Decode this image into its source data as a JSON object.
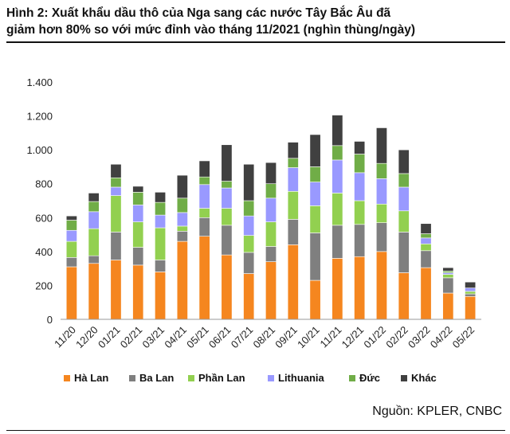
{
  "title": {
    "line1": "Hình 2: Xuất khẩu dầu thô của Nga sang các nước Tây Bắc Âu đã",
    "line2": "giảm hơn 80% so với mức đỉnh vào tháng 11/2021 (nghìn thùng/ngày)"
  },
  "source": "Nguồn: KPLER, CNBC",
  "chart_data": {
    "type": "bar",
    "stacked": true,
    "categories": [
      "11/20",
      "12/20",
      "01/21",
      "02/21",
      "03/21",
      "04/21",
      "05/21",
      "06/21",
      "07/21",
      "08/21",
      "09/21",
      "10/21",
      "11/21",
      "12/21",
      "01/22",
      "02/22",
      "03/22",
      "04/22",
      "05/22"
    ],
    "ylim": [
      0,
      1400
    ],
    "yticks": [
      0,
      200,
      400,
      600,
      800,
      1000,
      1200,
      1400
    ],
    "ytick_labels": [
      "0",
      "200",
      "400",
      "600",
      "800",
      "1.000",
      "1.200",
      "1.400"
    ],
    "grid": false,
    "legend_position": "bottom",
    "series": [
      {
        "name": "Hà Lan",
        "color": "#F5861F",
        "values": [
          310,
          330,
          350,
          320,
          280,
          460,
          490,
          380,
          270,
          340,
          440,
          230,
          360,
          370,
          400,
          275,
          305,
          155,
          135
        ]
      },
      {
        "name": "Ba Lan",
        "color": "#7F7F7F",
        "values": [
          55,
          45,
          165,
          105,
          70,
          60,
          110,
          175,
          125,
          90,
          150,
          280,
          195,
          190,
          170,
          240,
          100,
          90,
          15
        ]
      },
      {
        "name": "Phần Lan",
        "color": "#92D050",
        "values": [
          95,
          160,
          215,
          150,
          190,
          30,
          55,
          100,
          100,
          145,
          165,
          160,
          190,
          140,
          110,
          125,
          40,
          20,
          15
        ]
      },
      {
        "name": "Lithuania",
        "color": "#9999FF",
        "values": [
          65,
          100,
          50,
          100,
          75,
          80,
          140,
          120,
          115,
          140,
          140,
          140,
          195,
          165,
          150,
          140,
          35,
          10,
          20
        ]
      },
      {
        "name": "Đức",
        "color": "#70AD47",
        "values": [
          60,
          60,
          55,
          75,
          75,
          85,
          45,
          40,
          90,
          85,
          55,
          90,
          85,
          110,
          90,
          80,
          25,
          10,
          0
        ]
      },
      {
        "name": "Khác",
        "color": "#404040",
        "values": [
          25,
          50,
          80,
          35,
          60,
          135,
          95,
          215,
          215,
          125,
          95,
          190,
          180,
          75,
          210,
          140,
          60,
          20,
          35
        ]
      }
    ]
  }
}
